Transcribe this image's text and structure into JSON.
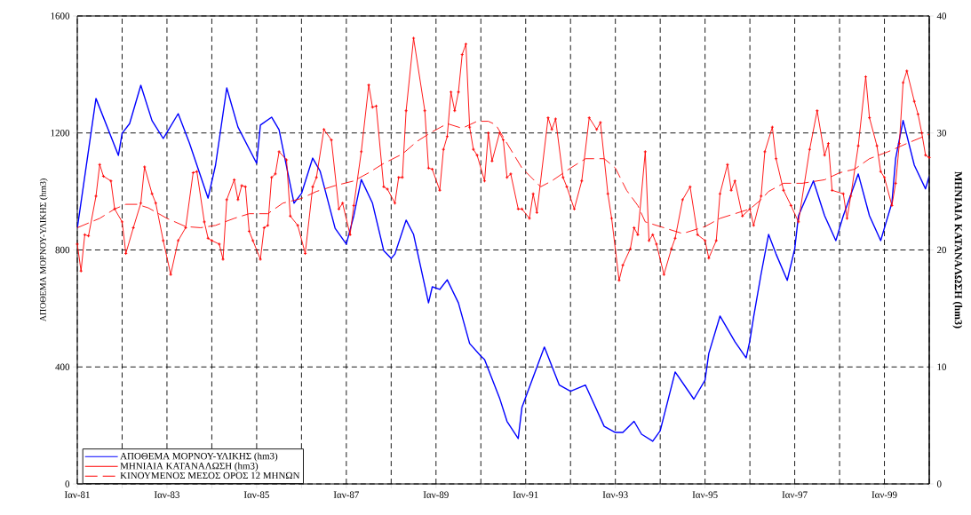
{
  "chart_data": {
    "type": "line",
    "ylabel": "ΑΠΟΘΕΜΑ ΜΟΡΝΟΥ-ΥΛΙΚΗΣ (hm3)",
    "y2label": "ΜΗΝΙΑΙΑ ΚΑΤΑΝΑΛΩΣΗ (hm3)",
    "xlim": [
      "1981-01",
      "2000-01"
    ],
    "xticks": [
      {
        "value": "1981-01",
        "label": "Ιαν-81"
      },
      {
        "value": "1982-01",
        "label": null
      },
      {
        "value": "1983-01",
        "label": "Ιαν-83"
      },
      {
        "value": "1984-01",
        "label": null
      },
      {
        "value": "1985-01",
        "label": "Ιαν-85"
      },
      {
        "value": "1986-01",
        "label": null
      },
      {
        "value": "1987-01",
        "label": "Ιαν-87"
      },
      {
        "value": "1988-01",
        "label": null
      },
      {
        "value": "1989-01",
        "label": "Ιαν-89"
      },
      {
        "value": "1990-01",
        "label": null
      },
      {
        "value": "1991-01",
        "label": "Ιαν-91"
      },
      {
        "value": "1992-01",
        "label": null
      },
      {
        "value": "1993-01",
        "label": "Ιαν-93"
      },
      {
        "value": "1994-01",
        "label": null
      },
      {
        "value": "1995-01",
        "label": "Ιαν-95"
      },
      {
        "value": "1996-01",
        "label": null
      },
      {
        "value": "1997-01",
        "label": "Ιαν-97"
      },
      {
        "value": "1998-01",
        "label": null
      },
      {
        "value": "1999-01",
        "label": "Ιαν-99"
      },
      {
        "value": "2000-01",
        "label": null
      }
    ],
    "ylim": [
      0,
      1600
    ],
    "yticks": [
      0,
      400,
      800,
      1200,
      1600
    ],
    "y2lim": [
      0,
      40
    ],
    "y2ticks": [
      0,
      10,
      20,
      30,
      40
    ],
    "grid": true,
    "legend": "bottom left",
    "series": [
      {
        "name": "ΑΠΟΘΕΜΑ ΜΟΡΝΟΥ-ΥΛΙΚΗΣ (hm3)",
        "color": "#0000ff",
        "axis": "y",
        "x": [
          "1981-01",
          "1981-06",
          "1981-12",
          "1982-01",
          "1982-03",
          "1982-06",
          "1982-09",
          "1982-12",
          "1983-01",
          "1983-04",
          "1983-07",
          "1983-12",
          "1984-02",
          "1984-05",
          "1984-08",
          "1985-01",
          "1985-02",
          "1985-05",
          "1985-07",
          "1985-11",
          "1986-01",
          "1986-04",
          "1986-06",
          "1986-10",
          "1987-01",
          "1987-03",
          "1987-05",
          "1987-08",
          "1987-11",
          "1988-01",
          "1988-02",
          "1988-05",
          "1988-07",
          "1988-11",
          "1988-12",
          "1989-02",
          "1989-04",
          "1989-07",
          "1989-10",
          "1990-01",
          "1990-02",
          "1990-06",
          "1990-08",
          "1990-11",
          "1990-12",
          "1991-06",
          "1991-10",
          "1992-01",
          "1992-05",
          "1992-10",
          "1993-01",
          "1993-03",
          "1993-06",
          "1993-08",
          "1993-11",
          "1994-01",
          "1994-05",
          "1994-10",
          "1995-01",
          "1995-02",
          "1995-05",
          "1995-09",
          "1995-12",
          "1996-01",
          "1996-02",
          "1996-04",
          "1996-06",
          "1996-08",
          "1996-11",
          "1997-01",
          "1997-02",
          "1997-06",
          "1997-09",
          "1997-12",
          "1998-02",
          "1998-06",
          "1998-09",
          "1998-12",
          "1999-03",
          "1999-04",
          "1999-06",
          "1999-09",
          "1999-12",
          "2000-01"
        ],
        "values": [
          874,
          1318,
          1123,
          1199,
          1232,
          1363,
          1242,
          1181,
          1202,
          1266,
          1166,
          977,
          1090,
          1354,
          1220,
          1096,
          1227,
          1254,
          1211,
          960,
          993,
          1114,
          1069,
          874,
          820,
          917,
          1041,
          960,
          798,
          771,
          786,
          902,
          853,
          619,
          674,
          665,
          698,
          619,
          480,
          437,
          425,
          294,
          214,
          155,
          262,
          468,
          338,
          317,
          338,
          197,
          176,
          176,
          214,
          170,
          146,
          182,
          383,
          290,
          355,
          446,
          574,
          486,
          431,
          490,
          571,
          718,
          853,
          786,
          696,
          804,
          917,
          1036,
          917,
          832,
          917,
          1060,
          917,
          832,
          961,
          1112,
          1243,
          1090,
          1009,
          1053
        ]
      },
      {
        "name": "ΜΗΝΙΑΙΑ ΚΑΤΑΝΑΛΩΣΗ (hm3)",
        "color": "#ff0000",
        "axis": "y2",
        "marker": "cross",
        "x": [
          "1981-01",
          "1981-02",
          "1981-03",
          "1981-04",
          "1981-06",
          "1981-07",
          "1981-08",
          "1981-10",
          "1981-11",
          "1982-01",
          "1982-02",
          "1982-04",
          "1982-06",
          "1982-07",
          "1982-09",
          "1982-10",
          "1982-12",
          "1983-02",
          "1983-04",
          "1983-06",
          "1983-08",
          "1983-09",
          "1983-11",
          "1983-12",
          "1984-01",
          "1984-03",
          "1984-04",
          "1984-05",
          "1984-07",
          "1984-08",
          "1984-09",
          "1984-10",
          "1984-11",
          "1984-12",
          "1985-02",
          "1985-03",
          "1985-04",
          "1985-05",
          "1985-06",
          "1985-07",
          "1985-09",
          "1985-10",
          "1985-12",
          "1986-02",
          "1986-04",
          "1986-05",
          "1986-07",
          "1986-09",
          "1986-11",
          "1986-12",
          "1987-02",
          "1987-03",
          "1987-05",
          "1987-07",
          "1987-08",
          "1987-09",
          "1987-11",
          "1987-12",
          "1988-02",
          "1988-03",
          "1988-04",
          "1988-05",
          "1988-07",
          "1988-10",
          "1988-11",
          "1988-12",
          "1989-02",
          "1989-03",
          "1989-04",
          "1989-05",
          "1989-06",
          "1989-07",
          "1989-08",
          "1989-09",
          "1989-10",
          "1989-11",
          "1989-12",
          "1990-02",
          "1990-03",
          "1990-04",
          "1990-06",
          "1990-07",
          "1990-08",
          "1990-09",
          "1990-11",
          "1990-12",
          "1991-02",
          "1991-03",
          "1991-04",
          "1991-07",
          "1991-08",
          "1991-09",
          "1991-11",
          "1991-12",
          "1992-02",
          "1992-04",
          "1992-06",
          "1992-08",
          "1992-09",
          "1992-11",
          "1992-12",
          "1993-02",
          "1993-03",
          "1993-05",
          "1993-06",
          "1993-07",
          "1993-09",
          "1993-10",
          "1993-11",
          "1993-12",
          "1994-02",
          "1994-04",
          "1994-05",
          "1994-07",
          "1994-09",
          "1994-11",
          "1995-01",
          "1995-02",
          "1995-04",
          "1995-05",
          "1995-07",
          "1995-08",
          "1995-09",
          "1995-11",
          "1996-01",
          "1996-02",
          "1996-04",
          "1996-05",
          "1996-07",
          "1996-08",
          "1996-10",
          "1996-12",
          "1997-02",
          "1997-05",
          "1997-07",
          "1997-09",
          "1997-10",
          "1997-11",
          "1998-02",
          "1998-03",
          "1998-04",
          "1998-06",
          "1998-08",
          "1998-09",
          "1998-11",
          "1998-12",
          "1999-01",
          "1999-03",
          "1999-04",
          "1999-05",
          "1999-06",
          "1999-07",
          "1999-09",
          "1999-10",
          "1999-11",
          "1999-12",
          "2000-01"
        ],
        "values": [
          20.5,
          18.2,
          21.3,
          21.2,
          24.6,
          27.3,
          26.3,
          25.9,
          23.5,
          22.4,
          19.7,
          21.9,
          24.0,
          27.1,
          24.8,
          24.0,
          20.8,
          17.9,
          20.8,
          21.9,
          26.6,
          26.7,
          22.4,
          21.0,
          20.8,
          20.5,
          19.2,
          24.3,
          26.0,
          24.3,
          25.5,
          25.4,
          21.6,
          20.8,
          19.2,
          21.9,
          22.1,
          26.2,
          26.5,
          28.4,
          27.7,
          22.9,
          22.1,
          19.7,
          25.4,
          26.2,
          30.3,
          29.4,
          23.5,
          24.0,
          21.3,
          23.8,
          28.4,
          34.1,
          32.2,
          32.3,
          25.4,
          25.2,
          24.0,
          26.2,
          26.2,
          31.9,
          38.1,
          31.9,
          27.0,
          26.9,
          25.1,
          28.6,
          29.7,
          33.5,
          31.9,
          33.5,
          36.7,
          37.6,
          30.5,
          28.6,
          28.1,
          25.9,
          30.0,
          27.6,
          30.0,
          29.4,
          26.2,
          26.5,
          23.5,
          23.5,
          22.7,
          24.8,
          23.2,
          31.3,
          30.3,
          31.2,
          26.2,
          25.4,
          23.5,
          25.9,
          31.3,
          30.3,
          30.9,
          24.8,
          22.7,
          17.4,
          18.7,
          20.1,
          21.9,
          21.3,
          28.4,
          20.8,
          21.3,
          20.5,
          17.9,
          20.1,
          21.0,
          24.3,
          25.4,
          21.3,
          20.8,
          19.3,
          20.8,
          24.8,
          27.3,
          25.1,
          25.9,
          22.9,
          23.5,
          22.1,
          24.6,
          28.4,
          30.5,
          27.8,
          25.1,
          23.8,
          22.4,
          28.6,
          31.9,
          28.1,
          29.1,
          25.1,
          24.8,
          22.7,
          24.6,
          28.9,
          34.8,
          31.3,
          28.9,
          26.7,
          26.2,
          23.8,
          25.7,
          29.1,
          34.3,
          35.3,
          32.7,
          31.6,
          30.0,
          28.1,
          27.9
        ]
      },
      {
        "name": "ΚΙΝΟΥΜΕΝΟΣ ΜΕΣΟΣ ΟΡΟΣ 12 ΜΗΝΩΝ",
        "color": "#ff0000",
        "axis": "y2",
        "line_style": "dashed",
        "x": [
          "1981-01",
          "1981-07",
          "1981-11",
          "1982-02",
          "1982-05",
          "1982-08",
          "1983-01",
          "1983-06",
          "1983-10",
          "1984-02",
          "1984-07",
          "1984-11",
          "1985-04",
          "1985-08",
          "1986-01",
          "1986-05",
          "1986-10",
          "1987-03",
          "1987-07",
          "1987-11",
          "1988-04",
          "1988-08",
          "1988-12",
          "1989-04",
          "1989-08",
          "1989-12",
          "1990-03",
          "1990-05",
          "1990-12",
          "1991-05",
          "1991-08",
          "1992-01",
          "1992-05",
          "1992-10",
          "1993-01",
          "1993-04",
          "1993-07",
          "1993-09",
          "1994-07",
          "1995-01",
          "1995-05",
          "1995-09",
          "1996-01",
          "1996-04",
          "1996-06",
          "1996-10",
          "1997-03",
          "1997-09",
          "1998-01",
          "1998-05",
          "1998-09",
          "1999-02",
          "1999-07",
          "2000-01"
        ],
        "values": [
          21.9,
          22.7,
          23.5,
          23.9,
          23.9,
          23.6,
          22.7,
          22.0,
          21.9,
          22.1,
          22.7,
          23.1,
          23.1,
          24.0,
          24.4,
          25.0,
          25.5,
          25.9,
          26.6,
          27.4,
          28.2,
          29.3,
          30.1,
          30.8,
          30.4,
          31.0,
          31.0,
          30.7,
          27.0,
          25.4,
          25.9,
          27.0,
          27.8,
          27.8,
          27.0,
          25.1,
          23.8,
          22.4,
          21.4,
          22.0,
          22.7,
          23.1,
          23.5,
          24.3,
          25.0,
          25.7,
          25.7,
          26.0,
          26.6,
          26.9,
          27.8,
          28.4,
          29.1,
          29.9
        ]
      }
    ]
  }
}
